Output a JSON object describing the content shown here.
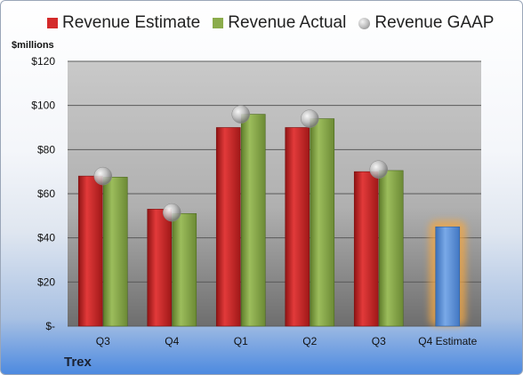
{
  "legend": {
    "estimate": "Revenue Estimate",
    "actual": "Revenue Actual",
    "gaap": "Revenue GAAP"
  },
  "unit_label": "$millions",
  "company": "Trex",
  "colors": {
    "estimate": "#d42a2a",
    "actual": "#8bac4b",
    "gaap": "#b8b8b8",
    "future_estimate": "#5b8fd6",
    "glow": "#f4a742"
  },
  "chart_data": {
    "type": "bar",
    "categories": [
      "Q3",
      "Q4",
      "Q1",
      "Q2",
      "Q3",
      "Q4 Estimate"
    ],
    "series": [
      {
        "name": "Revenue Estimate",
        "values": [
          68,
          53,
          90,
          90,
          70,
          45
        ]
      },
      {
        "name": "Revenue Actual",
        "values": [
          67.5,
          51,
          96,
          94,
          70.5,
          null
        ]
      },
      {
        "name": "Revenue GAAP",
        "values": [
          68,
          51.5,
          96,
          94,
          71,
          null
        ]
      }
    ],
    "ylabel": "$millions",
    "ylim": [
      0,
      120
    ],
    "yticks": [
      0,
      20,
      40,
      60,
      80,
      100,
      120
    ],
    "ytick_labels": [
      "$-",
      "$20",
      "$40",
      "$60",
      "$80",
      "$100",
      "$120"
    ],
    "grid": true,
    "legend_position": "top"
  }
}
